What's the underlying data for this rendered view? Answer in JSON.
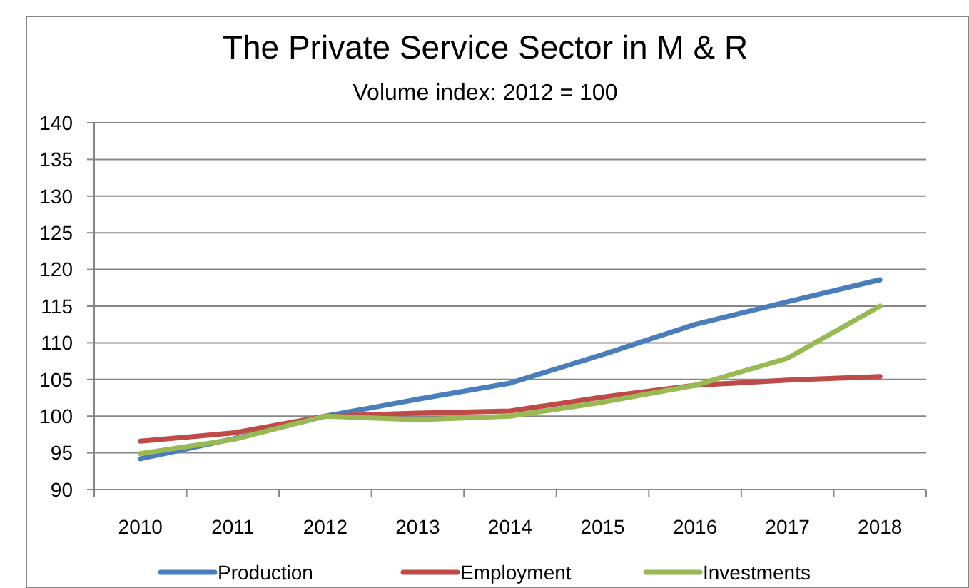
{
  "chart_data": {
    "type": "line",
    "title": "The Private Service Sector in M & R",
    "subtitle": "Volume index: 2012 = 100",
    "categories": [
      "2010",
      "2011",
      "2012",
      "2013",
      "2014",
      "2015",
      "2016",
      "2017",
      "2018"
    ],
    "series": [
      {
        "name": "Production",
        "color": "#4a7ebb",
        "values": [
          94.2,
          96.9,
          100,
          102.3,
          104.5,
          108.4,
          112.5,
          115.6,
          118.6
        ]
      },
      {
        "name": "Employment",
        "color": "#be4b48",
        "values": [
          96.6,
          97.7,
          100,
          100.4,
          100.7,
          102.6,
          104.2,
          104.9,
          105.4
        ]
      },
      {
        "name": "Investments",
        "color": "#98b954",
        "values": [
          94.9,
          96.8,
          100,
          99.5,
          100.0,
          101.9,
          104.2,
          107.9,
          115.0
        ]
      }
    ],
    "ylim": [
      90,
      140
    ],
    "yticks": [
      90,
      95,
      100,
      105,
      110,
      115,
      120,
      125,
      130,
      135,
      140
    ],
    "grid": "y",
    "legend": "bottom",
    "marker": "none",
    "line_style": "solid"
  }
}
